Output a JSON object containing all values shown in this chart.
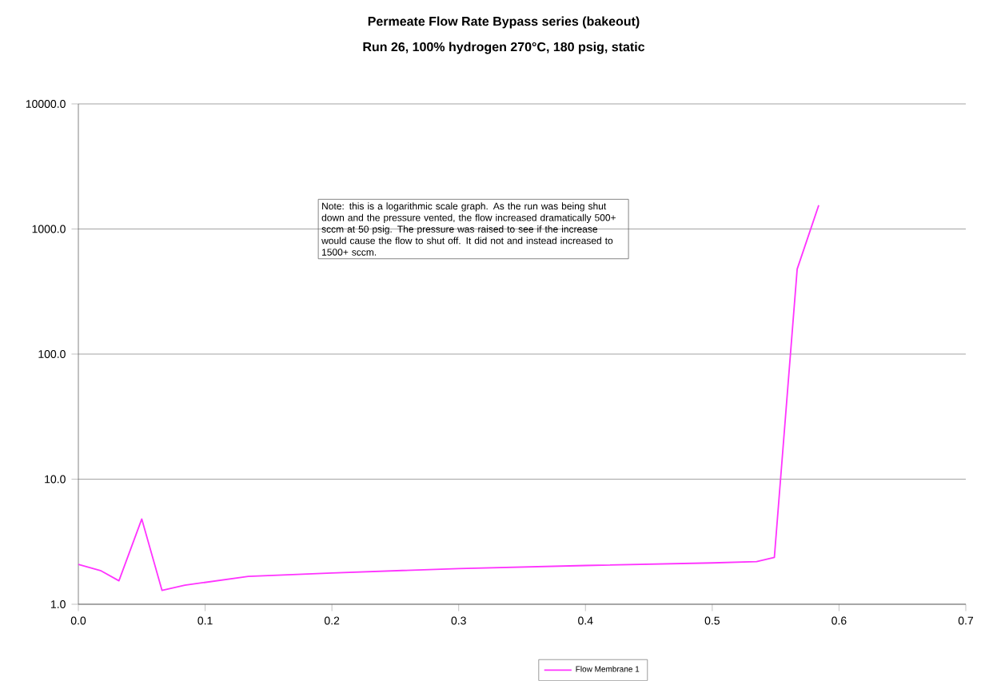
{
  "chart_data": {
    "type": "line",
    "title": "Permeate Flow Rate Bypass series (bakeout)",
    "subtitle": "Run 26, 100% hydrogen 270°C, 180 psig, static",
    "x": [
      0,
      0.018,
      0.032,
      0.05,
      0.066,
      0.084,
      0.134,
      0.2,
      0.3,
      0.4,
      0.5,
      0.535,
      0.549,
      0.567,
      0.584
    ],
    "series": [
      {
        "name": "Flow Membrane 1",
        "color": "#ff33ff",
        "values": [
          2.08,
          1.85,
          1.54,
          4.8,
          1.29,
          1.42,
          1.67,
          1.78,
          1.93,
          2.04,
          2.14,
          2.19,
          2.37,
          478,
          1550
        ]
      }
    ],
    "xlim": [
      0,
      0.7
    ],
    "xticks": [
      {
        "value": 0,
        "label": "0.0"
      },
      0.1,
      0.2,
      0.3,
      0.4,
      0.5,
      0.6,
      0.7
    ],
    "ylim": [
      1,
      10000
    ],
    "yticks": [
      {
        "value": 1,
        "label": "1.0"
      },
      {
        "value": 10,
        "label": "10.0"
      },
      {
        "value": 100,
        "label": "100.0"
      },
      {
        "value": 1000,
        "label": "1000.0"
      },
      {
        "value": 10000,
        "label": "10000.0"
      }
    ],
    "log": "y",
    "grid": "y",
    "legend": "bottom",
    "marker": "none",
    "line_style": "solid",
    "annotations": [
      "Note: this is a logarithmic scale graph.  As the run was being shut down and the pressure vented, the flow increased dramatically 500+ sccm at 50 psig. The pressure was raised to see if the increase would cause the flow to shut off. It did not and instead increased to 1500+ sccm."
    ]
  }
}
